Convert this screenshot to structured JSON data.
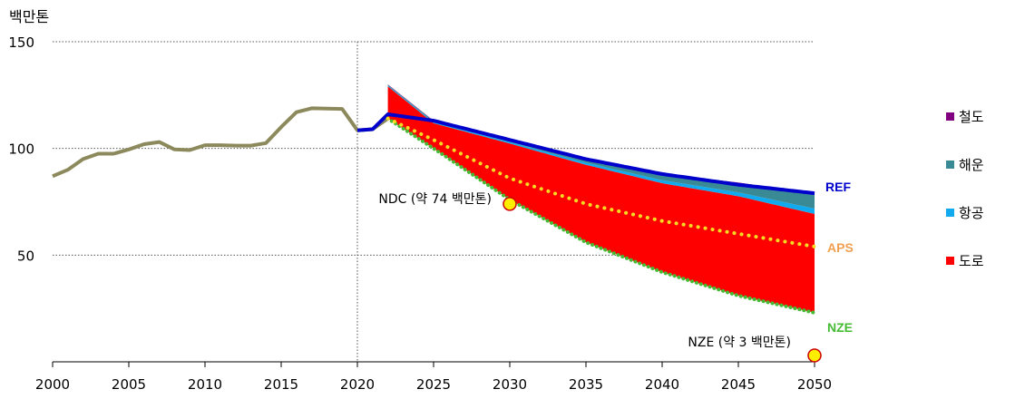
{
  "chart_data": {
    "type": "area",
    "ylabel": "백만톤",
    "ylim": [
      0,
      150
    ],
    "yticks": [
      50,
      100,
      150
    ],
    "xlim": [
      2000,
      2050
    ],
    "xticks": [
      2000,
      2005,
      2010,
      2015,
      2020,
      2025,
      2030,
      2035,
      2040,
      2045,
      2050
    ],
    "grid": true,
    "vline_year": 2020,
    "legend_position": "right",
    "history": {
      "name": "",
      "color": "#8c8a5c",
      "x": [
        2000,
        2001,
        2002,
        2003,
        2004,
        2005,
        2006,
        2007,
        2008,
        2009,
        2010,
        2011,
        2012,
        2013,
        2014,
        2015,
        2016,
        2017,
        2018,
        2019,
        2020,
        2021,
        2022
      ],
      "y": [
        87,
        90,
        95,
        97.5,
        97.5,
        99.5,
        102,
        103,
        99.5,
        99.2,
        101.5,
        101.5,
        101.3,
        101.3,
        102.5,
        110,
        117,
        118.8,
        118.7,
        118.5,
        108.5,
        109,
        114
      ]
    },
    "x": [
      2022,
      2025,
      2030,
      2035,
      2040,
      2045,
      2050
    ],
    "scenarios": {
      "REF": {
        "label": "REF",
        "color": "#0000cc",
        "y": [
          116,
          113,
          104,
          95,
          88,
          83,
          79
        ]
      },
      "APS": {
        "label": "APS",
        "color": "#f0a050",
        "dot_color": "#f5dc20",
        "y": [
          114,
          104,
          86,
          74,
          66,
          60,
          54
        ]
      },
      "NZE": {
        "label": "NZE",
        "color": "#44bb33",
        "y": [
          114,
          100,
          76,
          56,
          42,
          31,
          23
        ]
      }
    },
    "series": [
      {
        "name": "철도",
        "color": "#800080",
        "values": [
          0.2,
          0.2,
          0.2,
          0.2,
          0.2,
          0.2,
          0.2
        ]
      },
      {
        "name": "해운",
        "color": "#3a8a96",
        "values": [
          0.3,
          0.5,
          0.8,
          1.5,
          2.7,
          4.4,
          7
        ]
      },
      {
        "name": "항공",
        "color": "#11aaee",
        "values": [
          0.4,
          0.5,
          0.7,
          1,
          1.4,
          1.8,
          2.5
        ]
      },
      {
        "name": "도로",
        "color": "#ff0000",
        "values": [
          15.1,
          11.8,
          26.3,
          36.3,
          41.7,
          46.6,
          46.3
        ]
      }
    ],
    "annotations": [
      {
        "text": "NDC (약 74 백만톤)",
        "year": 2030,
        "value": 74
      },
      {
        "text": "NZE (약 3 백만톤)",
        "year": 2050,
        "value": 3
      }
    ],
    "marker_color": "#ffee00",
    "marker_edge": "#cc0000"
  }
}
